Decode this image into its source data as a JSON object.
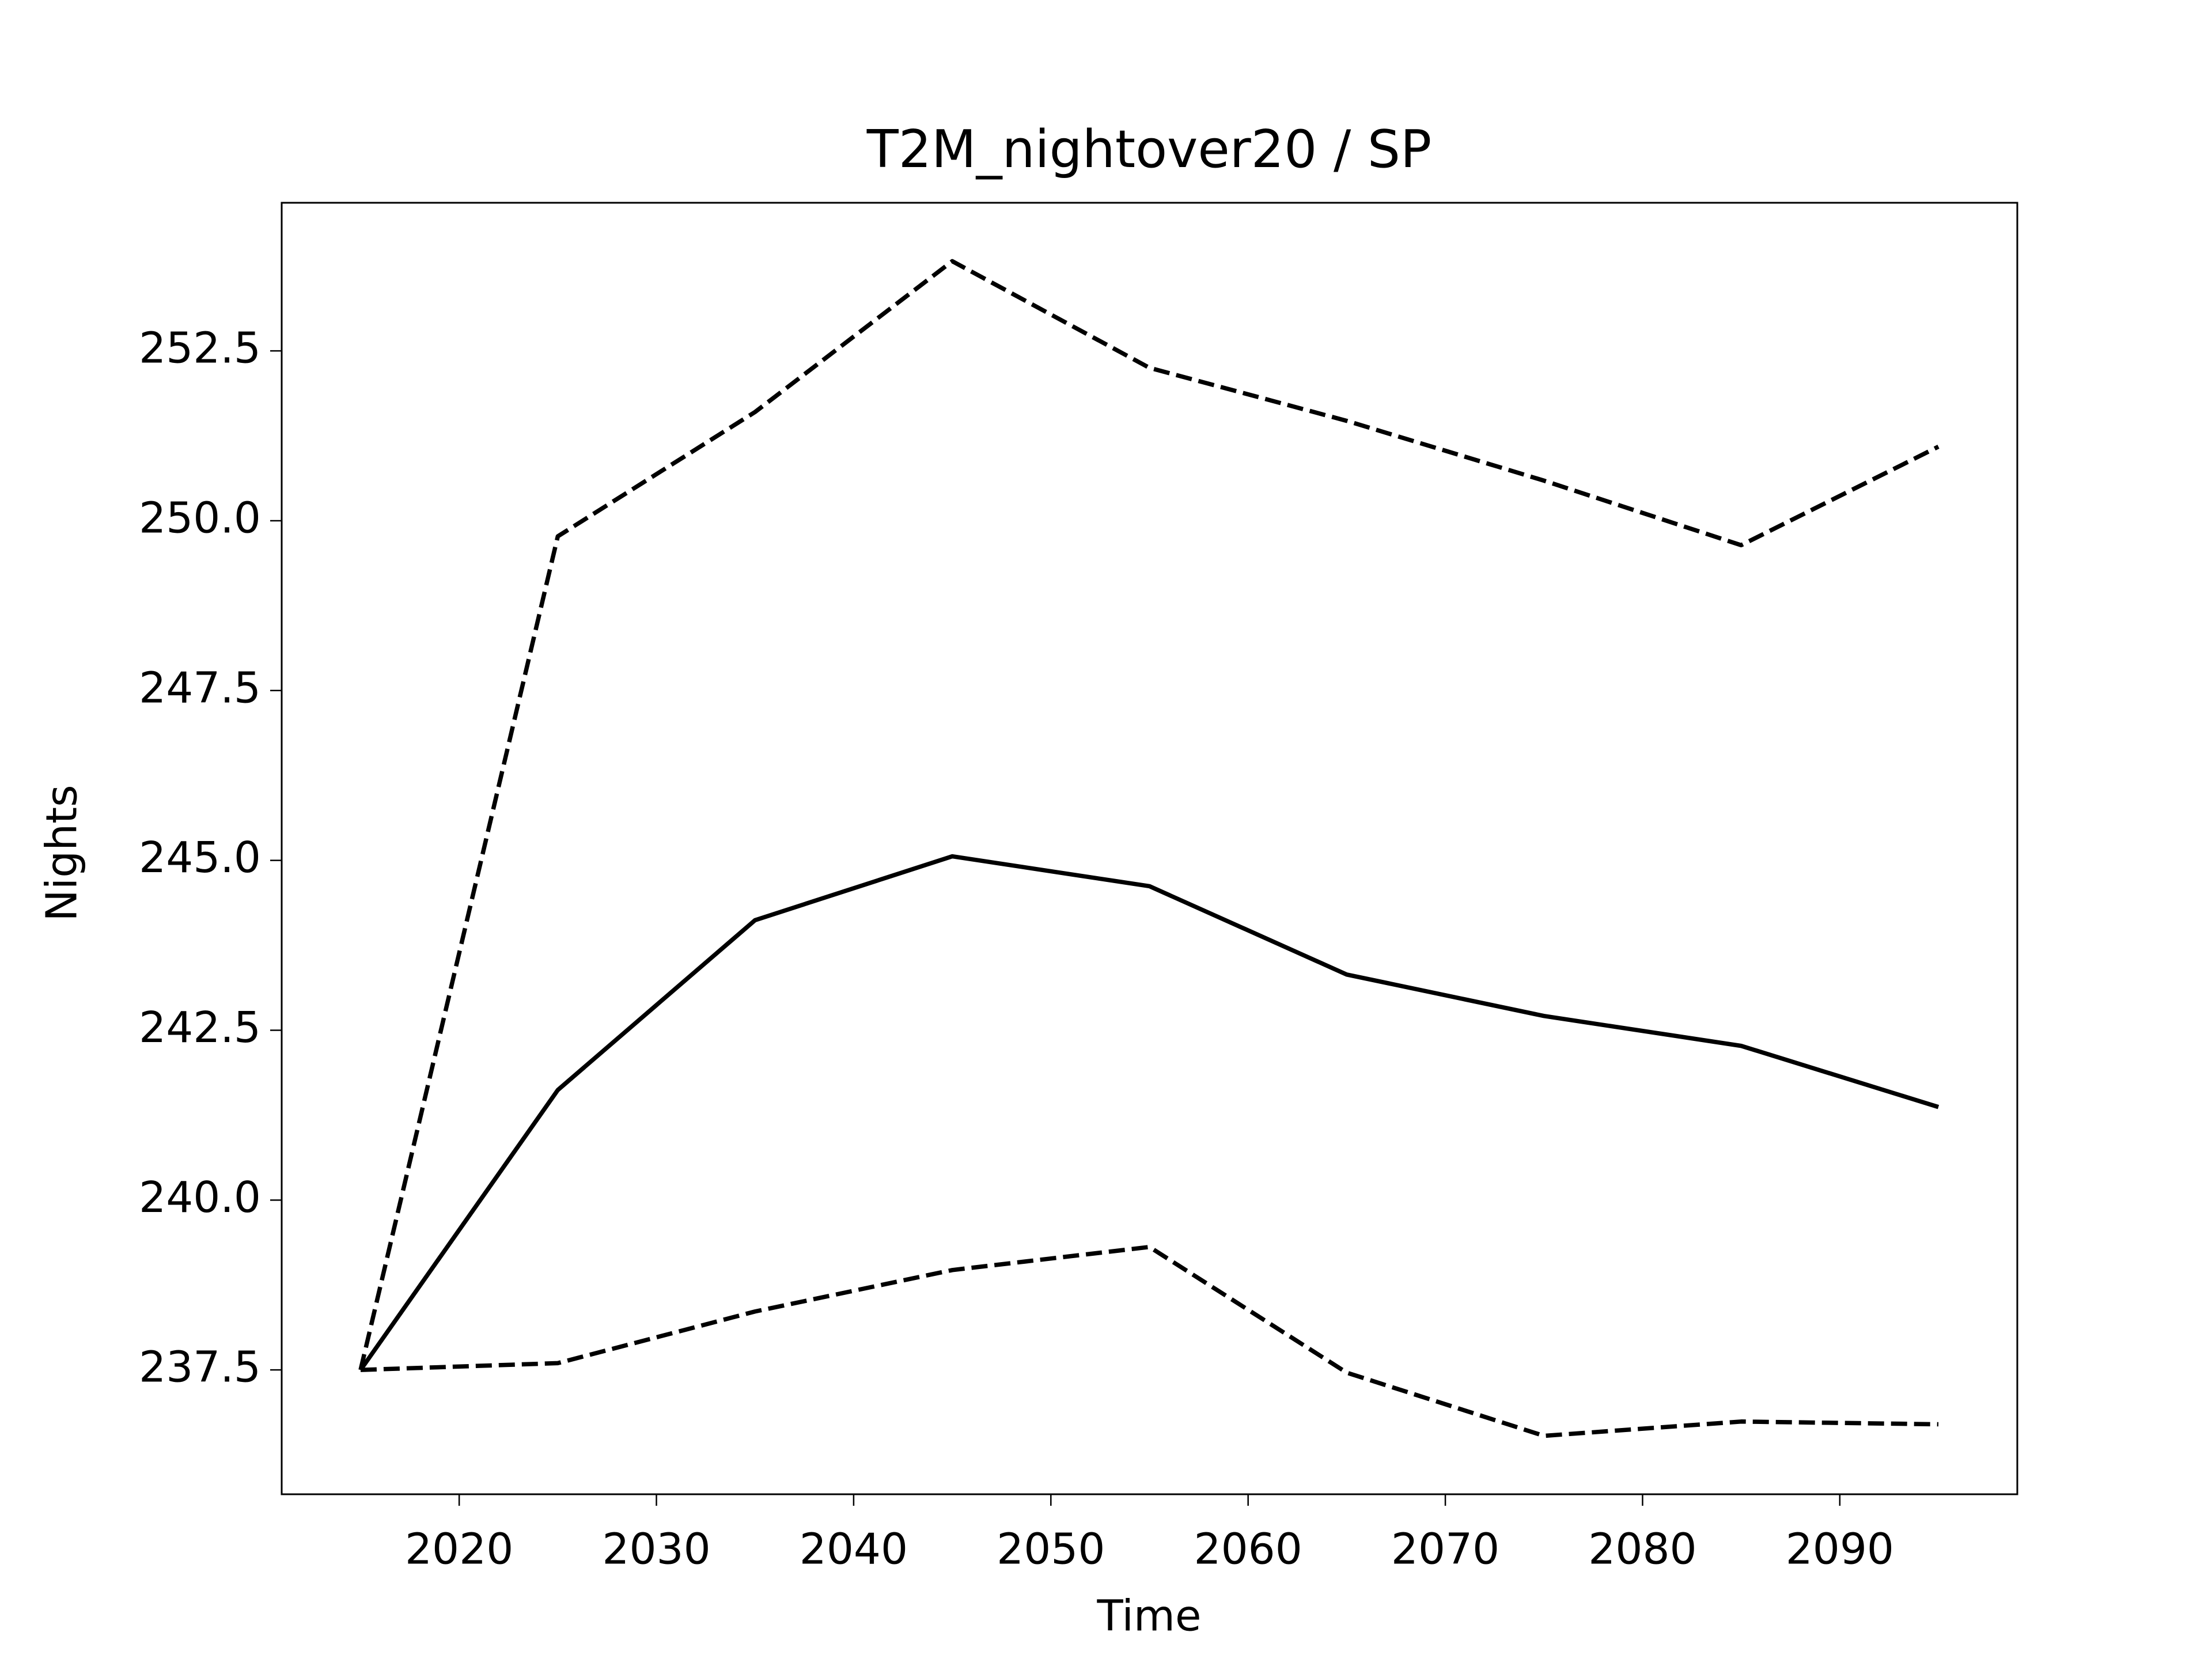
{
  "chart_data": {
    "type": "line",
    "title": "T2M_nightover20 / SP",
    "x_label": "Time",
    "y_label": "Nights",
    "x": [
      2015,
      2025,
      2035,
      2045,
      2055,
      2065,
      2075,
      2085,
      2095
    ],
    "series": [
      {
        "color": "#000000",
        "linestyle": "solid",
        "values": [
          237.5,
          241.62,
          244.12,
          245.06,
          244.62,
          243.32,
          242.71,
          242.27,
          241.37
        ]
      },
      {
        "color": "#000000",
        "linestyle": "dashed",
        "values": [
          237.5,
          249.77,
          251.6,
          253.82,
          252.25,
          251.47,
          250.59,
          249.64,
          251.09
        ]
      },
      {
        "color": "#000000",
        "linestyle": "dashed",
        "values": [
          237.5,
          237.6,
          238.36,
          238.97,
          239.31,
          237.46,
          236.53,
          236.74,
          236.7
        ]
      }
    ],
    "xlim": [
      2011,
      2099
    ],
    "xticks": [
      2020,
      2030,
      2040,
      2050,
      2060,
      2070,
      2080,
      2090
    ],
    "ylim": [
      235.67,
      254.68
    ],
    "yticks": [
      237.5,
      {
        "value": 240,
        "label": "240.0"
      },
      242.5,
      {
        "value": 245,
        "label": "245.0"
      },
      247.5,
      {
        "value": 250,
        "label": "250.0"
      },
      252.5
    ],
    "grid": false
  }
}
